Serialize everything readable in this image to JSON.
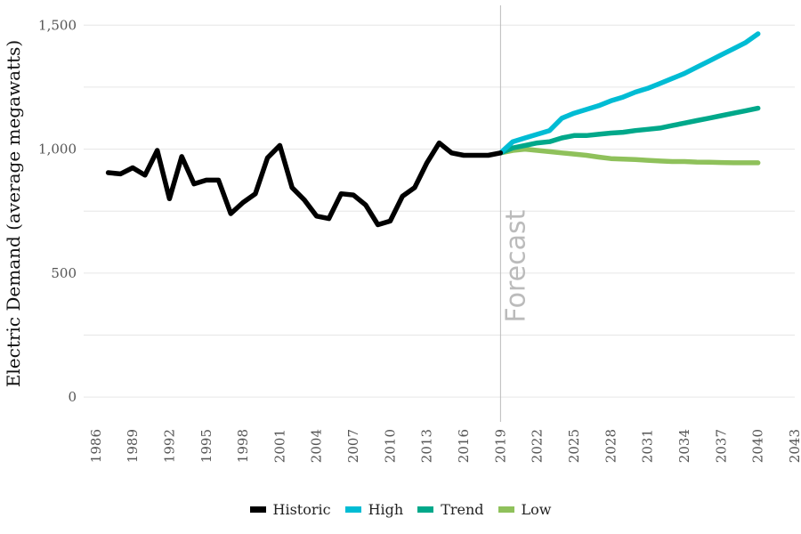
{
  "chart_data": {
    "type": "line",
    "ylabel": "Electric Demand (average megawatts)",
    "xlabel": "",
    "xlim": [
      1985,
      2043
    ],
    "ylim": [
      -100,
      1580
    ],
    "x_ticks": [
      "1986",
      "1989",
      "1992",
      "1995",
      "1998",
      "2001",
      "2004",
      "2007",
      "2010",
      "2013",
      "2016",
      "2019",
      "2022",
      "2025",
      "2028",
      "2031",
      "2034",
      "2037",
      "2040",
      "2043"
    ],
    "y_ticks": [
      "0",
      "500",
      "1,000",
      "1,500"
    ],
    "y_tick_values": [
      0,
      500,
      1000,
      1500
    ],
    "gridlines": [
      0,
      250,
      500,
      750,
      1000,
      1250,
      1500
    ],
    "grid": true,
    "legend_position": "bottom",
    "annotation": {
      "text": "Forecast",
      "x": 2019
    },
    "series": [
      {
        "name": "Historic",
        "color": "#000000",
        "x": [
          1987,
          1988,
          1989,
          1990,
          1991,
          1992,
          1993,
          1994,
          1995,
          1996,
          1997,
          1998,
          1999,
          2000,
          2001,
          2002,
          2003,
          2004,
          2005,
          2006,
          2007,
          2008,
          2009,
          2010,
          2011,
          2012,
          2013,
          2014,
          2015,
          2016,
          2017,
          2018,
          2019
        ],
        "values": [
          905,
          900,
          925,
          895,
          995,
          800,
          970,
          860,
          875,
          875,
          740,
          785,
          820,
          965,
          1015,
          845,
          795,
          730,
          720,
          820,
          815,
          775,
          695,
          710,
          810,
          845,
          945,
          1025,
          985,
          975,
          975,
          975,
          985
        ]
      },
      {
        "name": "High",
        "color": "#00bcd4",
        "x": [
          2019,
          2020,
          2021,
          2022,
          2023,
          2024,
          2025,
          2026,
          2027,
          2028,
          2029,
          2030,
          2031,
          2032,
          2033,
          2034,
          2035,
          2036,
          2037,
          2038,
          2039,
          2040
        ],
        "values": [
          985,
          1030,
          1045,
          1060,
          1075,
          1125,
          1145,
          1160,
          1175,
          1195,
          1210,
          1230,
          1245,
          1265,
          1285,
          1305,
          1330,
          1355,
          1380,
          1405,
          1430,
          1465
        ]
      },
      {
        "name": "Trend",
        "color": "#00a88a",
        "x": [
          2019,
          2020,
          2021,
          2022,
          2023,
          2024,
          2025,
          2026,
          2027,
          2028,
          2029,
          2030,
          2031,
          2032,
          2033,
          2034,
          2035,
          2036,
          2037,
          2038,
          2039,
          2040
        ],
        "values": [
          985,
          1005,
          1015,
          1025,
          1030,
          1045,
          1055,
          1055,
          1060,
          1065,
          1068,
          1075,
          1080,
          1085,
          1095,
          1105,
          1115,
          1125,
          1135,
          1145,
          1155,
          1165
        ]
      },
      {
        "name": "Low",
        "color": "#8fc15b",
        "x": [
          2019,
          2020,
          2021,
          2022,
          2023,
          2024,
          2025,
          2026,
          2027,
          2028,
          2029,
          2030,
          2031,
          2032,
          2033,
          2034,
          2035,
          2036,
          2037,
          2038,
          2039,
          2040
        ],
        "values": [
          985,
          995,
          1000,
          995,
          990,
          985,
          980,
          975,
          968,
          962,
          960,
          958,
          955,
          952,
          950,
          950,
          948,
          947,
          946,
          945,
          945,
          945
        ]
      }
    ]
  }
}
